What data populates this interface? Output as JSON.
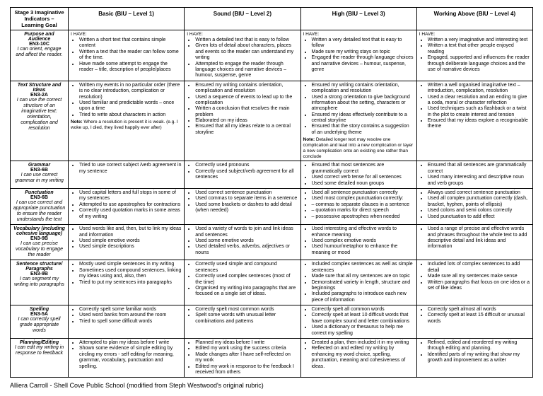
{
  "header": {
    "corner": "Stage 3 Imaginative Indicators – Learning Goal",
    "levels": [
      "Basic (BIU – Level 1)",
      "Sound (BIU – Level 2)",
      "High (BIU – Level 3)",
      "Working Above (BIU – Level 4)"
    ]
  },
  "ihave": "I HAVE:",
  "rows": [
    {
      "title": "Purpose and Audience",
      "code": "EN3-10C",
      "desc": "I can orient, engage and affect the reader.",
      "c1": [
        "Written a short text that contains simple content",
        "Written a text that the reader can follow some of the time.",
        "Have made some attempt to engage the reader – title, description of people/places"
      ],
      "c2": [
        "Written a detailed text that is easy to follow",
        "Given lots of detail about characters, places and events so the reader can understand my writing",
        "Attempted to engage the reader through language choices and narrative devices – humour, suspense, genre"
      ],
      "c3": [
        "Written a very detailed text that is easy to follow",
        "Made sure my writing stays on topic",
        "Engaged the reader through language choices and narrative devices – humour, suspense, genre"
      ],
      "c4": [
        "Written a very imaginative and interesting text",
        "Written a text that other people enjoyed reading",
        "Engaged, supported and influences the reader through deliberate language choices and the use of narrative devices"
      ]
    },
    {
      "title": "Text Structure and Ideas",
      "code": "EN3-2A",
      "desc": "I can use the correct structure of an imaginative text: orientation, complication and resolution",
      "c1": [
        "Written my events in no particular order (there is no clear introduction, complication or resolution)",
        "Used familiar and predictable words – once upon a time",
        "Tried to write about characters in action"
      ],
      "note1": "Note: Where a resolution is present it is weak. (e.g. I woke up, I died, they lived happily ever after)",
      "c2": [
        "Ensured my writing contains orientation, complication and resolution",
        "Used a sequence of events to lead up to the complication",
        "Written a conclusion that resolves the main problem",
        "Elaborated on my ideas",
        "Ensured that all my ideas relate to a central storyline"
      ],
      "c3": [
        "Ensured my writing contains orientation, complication and resolution",
        "Used a strong orientation to give background information about the setting, characters or atmosphere",
        "Ensured my ideas effectively contribute to a central storyline",
        "Ensured that the story contains a suggestion of an underlying theme"
      ],
      "note3": "Note: Detailed longer text may resolve one complication and lead into a new complication or layer a new complication onto an existing one rather than conclude",
      "c4": [
        "Written a well organised imaginative text – introduction, complication, resolution",
        "Used a clear resolution and an ending to give a coda, moral or character reflection",
        "Used techniques such as flashback or a twist in the plot to create interest and tension",
        "Ensured that my ideas explore a recognisable theme"
      ]
    },
    {
      "title": "Grammar",
      "code": "EN3-6B",
      "desc": "I can use correct grammar in my writing",
      "c1": [
        "Tried to use correct subject /verb agreement in my sentence"
      ],
      "c2": [
        "Correctly used pronouns",
        "Correctly used subject/verb agreement for all sentences"
      ],
      "c3": [
        "Ensured that most sentences are grammatically correct",
        "Used correct verb tense for all sentences",
        "Used some detailed noun groups"
      ],
      "c4": [
        "Ensured that all sentences are grammatically correct",
        "Used many interesting and descriptive noun and verb groups"
      ]
    },
    {
      "title": "Punctuation",
      "code": "EN3-6B",
      "desc": "I can use correct and appropriate punctuation to ensure the reader understands the text",
      "c1": [
        "Used capital letters and full stops in some of my sentences",
        "Attempted to use apostrophes for contractions",
        "Correctly used quotation marks in some areas of my writing"
      ],
      "c2": [
        "Used correct sentence punctuation",
        "Used commas to separate items in a sentence",
        "Used some brackets or dashes to add detail (when needed)"
      ],
      "c3": [
        "Used all sentence punctuation correctly",
        "Used most complex punctuation correctly:",
        "–  commas to separate clauses in a sentence",
        "–  quotation marks for direct speech",
        "–  possessive apostrophes when needed"
      ],
      "c4": [
        "Always used correct sentence punctuation",
        "Used all complex punctuation correctly (dash, bracket, hyphen, points of ellipsis)",
        "Used colons and semi colons correctly",
        "Used punctuation to add effect"
      ]
    },
    {
      "title": "Vocabulary (including cohesive language)",
      "code": "EN3-9B",
      "desc": "I can use precise vocabulary to engage the reader",
      "c1": [
        "Used words like and, then, but to link my ideas and information",
        "Used simple emotive words",
        "Used simple descriptions"
      ],
      "c2": [
        "Used a variety of words to join and link ideas and sentences",
        "Used some emotive words",
        "Used detailed verbs, adverbs, adjectives or nouns"
      ],
      "c3": [
        "Used interesting and effective words to enhance meaning",
        "Used complex emotive words",
        "Used humour/metaphor to enhance the meaning or mood"
      ],
      "c4": [
        "Used a range of precise and effective words and phrases throughout the whole text to add descriptive detail and link ideas and information"
      ]
    },
    {
      "title": "Sentence structure/ Paragraphs",
      "code": "EN3-9B",
      "desc": "I can segment my writing into paragraphs",
      "c1": [
        "Mostly used simple sentences in my writing",
        "Sometimes used compound sentences, linking my ideas using and, also, then",
        "Tried to put my sentences into paragraphs"
      ],
      "c2": [
        "Correctly used simple and compound sentences",
        "Correctly used complex sentences (most of the time)",
        "Organised my writing into paragraphs that are focused on a single set of ideas."
      ],
      "c3": [
        "Included complex sentences as well as simple sentences",
        "Made sure that all my sentences are on topic",
        "Demonstrated variety in length, structure and beginnings",
        "Included paragraphs to introduce each new piece of information"
      ],
      "c4": [
        "Included lots of complex sentences to add detail",
        "Made sure all my sentences make sense",
        "Written paragraphs that focus on one idea or a set of like ideas"
      ]
    },
    {
      "title": "Spelling",
      "code": "EN3-5A",
      "desc": "I can correctly spell grade appropriate words",
      "c1": [
        "Correctly spelt some familiar words",
        "Used word banks from around the room",
        "Tried to spell some difficult words"
      ],
      "c2": [
        "Correctly spelt most common words",
        "Spelt some words with unusual letter combinations and patterns"
      ],
      "c3": [
        "Correctly spelt all common words",
        "Correctly spelt at least 10 difficult words that have complex sound and letter combinations",
        "Used a dictionary or thesaurus to help me correct my spelling"
      ],
      "c4": [
        "Correctly spelt almost all words",
        "Correctly spelt at least 15 difficult or unusual words"
      ]
    },
    {
      "title": "Planning/Editing",
      "code": "",
      "desc": "I can edit my writing in response to feedback",
      "c1": [
        "Attempted to plan my ideas before I write",
        "Shown some evidence of simple editing by circling my errors - self editing for meaning, grammar, vocabulary, punctuation and spelling."
      ],
      "c2": [
        "Planned my ideas before I write",
        "Edited my work using the success criteria",
        "Made changes after I have self-reflected on my work",
        "Edited my work in response to the feedback I received from others"
      ],
      "c3": [
        "Created a plan, then included it in my writing",
        "Reflected on and edited my writing by enhancing my word choice, spelling, punctuation, meaning and cohesiveness of ideas."
      ],
      "c4": [
        "Refined, edited and reordered my writing through editing and planning.",
        "Identified parts of my writing that show my growth and improvement as a writer"
      ]
    }
  ],
  "footer": "Alliera Carroll - Shell Cove Public School (modified from Steph Westwood's original rubric)"
}
